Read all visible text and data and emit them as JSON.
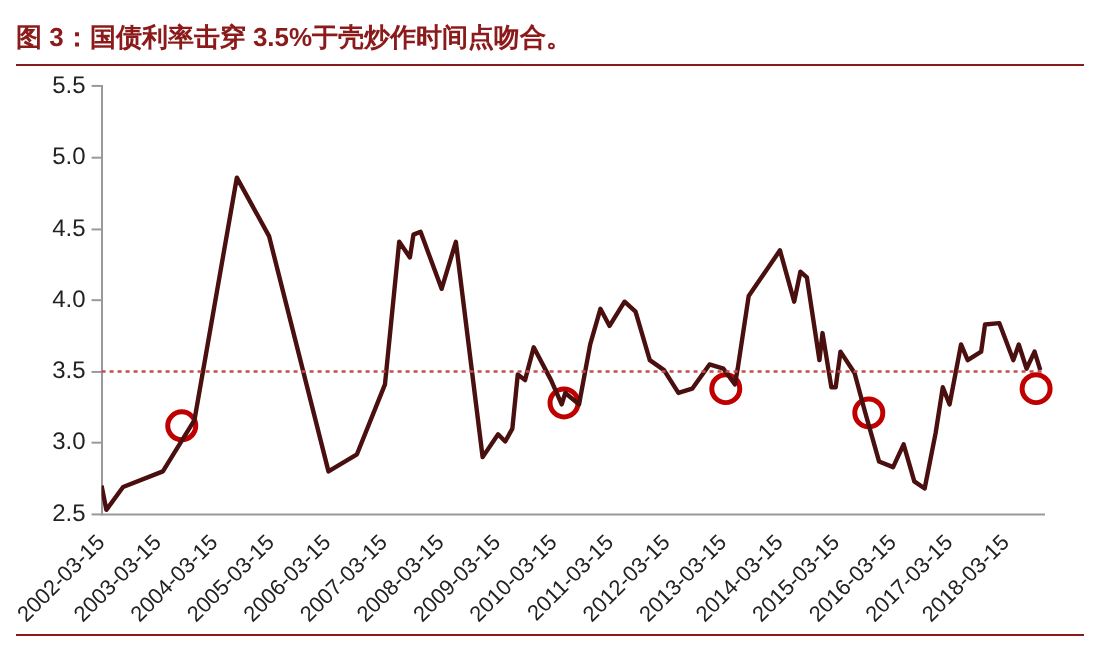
{
  "chart_data": {
    "type": "line",
    "title": "图 3：国债利率击穿 3.5%于壳炒作时间点吻合。",
    "xlim": [
      "2002-03-15",
      "2018-11-15"
    ],
    "xticks": [
      "2002-03-15",
      "2003-03-15",
      "2004-03-15",
      "2005-03-15",
      "2006-03-15",
      "2007-03-15",
      "2008-03-15",
      "2009-03-15",
      "2010-03-15",
      "2011-03-15",
      "2012-03-15",
      "2013-03-15",
      "2014-03-15",
      "2015-03-15",
      "2016-03-15",
      "2017-03-15",
      "2018-03-15"
    ],
    "ylim": [
      2.5,
      5.5
    ],
    "yticks": [
      {
        "value": 2.5,
        "label": "2.5"
      },
      {
        "value": 3,
        "label": "3.0"
      },
      {
        "value": 3.5,
        "label": "3.5"
      },
      {
        "value": 4,
        "label": "4.0"
      },
      {
        "value": 4.5,
        "label": "4.5"
      },
      {
        "value": 5,
        "label": "5.0"
      },
      {
        "value": 5.5,
        "label": "5.5"
      }
    ],
    "grid": false,
    "legend": false,
    "marker": "none",
    "line_style": "solid",
    "ref_lines": [
      {
        "axis": "y",
        "value": 3.5,
        "color": "#c0504d",
        "line_style": "dotted"
      }
    ],
    "series": [
      {
        "color": "#4a0f0f",
        "x": [
          "2002-03-15",
          "2002-04-15",
          "2002-08-01",
          "2003-04-15",
          "2003-11-05",
          "2004-08-05",
          "2005-03-01",
          "2006-03-20",
          "2006-09-20",
          "2007-03-20",
          "2007-06-20",
          "2007-08-28",
          "2007-09-20",
          "2007-11-05",
          "2008-03-20",
          "2008-06-20",
          "2008-12-10",
          "2009-03-20",
          "2009-05-05",
          "2009-06-20",
          "2009-07-25",
          "2009-09-10",
          "2009-11-05",
          "2010-02-25",
          "2010-05-05",
          "2010-05-28",
          "2010-08-25",
          "2010-11-05",
          "2011-01-10",
          "2011-03-10",
          "2011-06-15",
          "2011-08-25",
          "2011-11-25",
          "2012-02-25",
          "2012-05-28",
          "2012-08-25",
          "2012-12-15",
          "2013-03-15",
          "2013-05-28",
          "2013-06-15",
          "2013-08-25",
          "2014-03-15",
          "2014-06-15",
          "2014-07-25",
          "2014-09-05",
          "2014-11-25",
          "2014-12-15",
          "2015-02-10",
          "2015-03-10",
          "2015-04-10",
          "2015-07-10",
          "2015-09-15",
          "2015-12-15",
          "2016-03-15",
          "2016-05-22",
          "2016-07-30",
          "2016-10-05",
          "2016-12-15",
          "2017-01-30",
          "2017-03-15",
          "2017-05-28",
          "2017-07-10",
          "2017-10-05",
          "2017-10-30",
          "2018-01-30",
          "2018-05-01",
          "2018-06-05",
          "2018-07-25",
          "2018-09-15",
          "2018-10-22"
        ],
        "values": [
          2.7,
          2.53,
          2.69,
          2.8,
          3.16,
          4.86,
          4.45,
          2.8,
          2.92,
          3.41,
          4.41,
          4.3,
          4.46,
          4.48,
          4.08,
          4.41,
          2.9,
          3.06,
          3.01,
          3.1,
          3.48,
          3.44,
          3.67,
          3.44,
          3.27,
          3.35,
          3.27,
          3.69,
          3.94,
          3.82,
          3.99,
          3.92,
          3.58,
          3.51,
          3.35,
          3.38,
          3.55,
          3.52,
          3.41,
          3.52,
          4.03,
          4.35,
          3.99,
          4.2,
          4.16,
          3.58,
          3.77,
          3.39,
          3.39,
          3.64,
          3.49,
          3.22,
          2.87,
          2.83,
          2.99,
          2.73,
          2.68,
          3.07,
          3.39,
          3.27,
          3.69,
          3.58,
          3.64,
          3.83,
          3.84,
          3.58,
          3.69,
          3.52,
          3.64,
          3.51
        ]
      },
      {
        "type": "scatter",
        "color": "#c00000",
        "marker": "circle",
        "x": [
          "2003-08-15",
          "2010-05-20",
          "2013-03-30",
          "2015-10-10",
          "2018-09-25"
        ],
        "values": [
          3.12,
          3.28,
          3.38,
          3.21,
          3.38
        ]
      }
    ]
  }
}
